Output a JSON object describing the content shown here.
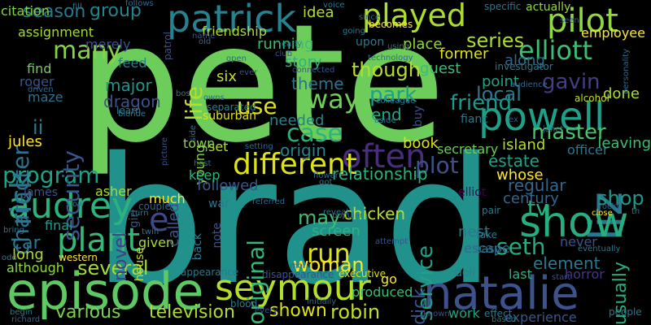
{
  "words": [
    {
      "text": "pete",
      "color": "#6ccd5a"
    },
    {
      "text": "brad",
      "color": "#21918c"
    },
    {
      "text": "episode",
      "color": "#5ec962"
    },
    {
      "text": "natalie",
      "color": "#3b528b"
    },
    {
      "text": "seymour",
      "color": "#b5de2b"
    },
    {
      "text": "patrick",
      "color": "#26828e"
    },
    {
      "text": "played",
      "color": "#addc30"
    },
    {
      "text": "pilot",
      "color": "#90d743"
    },
    {
      "text": "elliott",
      "color": "#3dbc74"
    },
    {
      "text": "powell",
      "color": "#1fa088"
    },
    {
      "text": "liz",
      "color": "#2a788e"
    },
    {
      "text": "show",
      "color": "#26ad81"
    },
    {
      "text": "audrey",
      "color": "#2db27d"
    },
    {
      "text": "plant",
      "color": "#37b878"
    },
    {
      "text": "often",
      "color": "#472d7b"
    },
    {
      "text": "different",
      "color": "#dde318"
    },
    {
      "text": "rick",
      "color": "#2a788e"
    },
    {
      "text": "e",
      "color": "#3e4989"
    },
    {
      "text": "program",
      "color": "#1fa188"
    },
    {
      "text": "character",
      "color": "#2c728e"
    },
    {
      "text": "security",
      "color": "#39568c"
    },
    {
      "text": "season",
      "color": "#2a788e"
    },
    {
      "text": "group",
      "color": "#25848e"
    },
    {
      "text": "series",
      "color": "#addc30"
    },
    {
      "text": "many",
      "color": "#84d44b"
    },
    {
      "text": "gavin",
      "color": "#433e85"
    },
    {
      "text": "master",
      "color": "#4ac16d"
    },
    {
      "text": "friend",
      "color": "#1f9a8a"
    },
    {
      "text": "local",
      "color": "#2a788e"
    },
    {
      "text": "though",
      "color": "#b5de2b"
    },
    {
      "text": "way",
      "color": "#70cf57"
    },
    {
      "text": "park",
      "color": "#1f9e89"
    },
    {
      "text": "case",
      "color": "#2db27d"
    },
    {
      "text": "use",
      "color": "#dde318"
    },
    {
      "text": "plot",
      "color": "#3b528b"
    },
    {
      "text": "seth",
      "color": "#25ab82"
    },
    {
      "text": "run",
      "color": "#dde318"
    },
    {
      "text": "woman",
      "color": "#fde725"
    },
    {
      "text": "several",
      "color": "#a5db36"
    },
    {
      "text": "various",
      "color": "#7ad151"
    },
    {
      "text": "television",
      "color": "#addc30"
    },
    {
      "text": "shown",
      "color": "#dde318"
    },
    {
      "text": "robin",
      "color": "#c2df23"
    },
    {
      "text": "service",
      "color": "#1fa088"
    },
    {
      "text": "dick",
      "color": "#3b528b"
    },
    {
      "text": "may",
      "color": "#3dbc74"
    },
    {
      "text": "original",
      "color": "#35b779"
    },
    {
      "text": "tv",
      "color": "#2ab07f"
    },
    {
      "text": "shop",
      "color": "#1f988b"
    },
    {
      "text": "usually",
      "color": "#26ad81"
    },
    {
      "text": "element",
      "color": "#2a788e"
    },
    {
      "text": "ii",
      "color": "#2a788e"
    },
    {
      "text": "car",
      "color": "#2a788e"
    },
    {
      "text": "novel",
      "color": "#433e85"
    },
    {
      "text": "young",
      "color": "#84d44b"
    },
    {
      "text": "life",
      "color": "#b5de2b"
    },
    {
      "text": "major",
      "color": "#1f968b"
    },
    {
      "text": "dragon",
      "color": "#3b528b"
    },
    {
      "text": "relationship",
      "color": "#2db27d"
    },
    {
      "text": "chicken",
      "color": "#b5de2b"
    },
    {
      "text": "screen",
      "color": "#2db27d"
    },
    {
      "text": "followed",
      "color": "#39568c"
    },
    {
      "text": "origin",
      "color": "#25848e"
    },
    {
      "text": "needed",
      "color": "#26828e"
    },
    {
      "text": "theme",
      "color": "#2c728e"
    },
    {
      "text": "end",
      "color": "#22a884"
    },
    {
      "text": "book",
      "color": "#dde318"
    },
    {
      "text": "secretary",
      "color": "#6ccd5a"
    },
    {
      "text": "island",
      "color": "#b5de2b"
    },
    {
      "text": "estate",
      "color": "#1fa088"
    },
    {
      "text": "whose",
      "color": "#fde725"
    },
    {
      "text": "regular",
      "color": "#31688e"
    },
    {
      "text": "century",
      "color": "#31688e"
    },
    {
      "text": "officer",
      "color": "#2a788e"
    },
    {
      "text": "leaving",
      "color": "#3dbc74"
    },
    {
      "text": "employee",
      "color": "#fde725"
    },
    {
      "text": "point",
      "color": "#20a486"
    },
    {
      "text": "done",
      "color": "#addc30"
    },
    {
      "text": "along",
      "color": "#31688e"
    },
    {
      "text": "former",
      "color": "#dde318"
    },
    {
      "text": "place",
      "color": "#90d743"
    },
    {
      "text": "guest",
      "color": "#3dbc74"
    },
    {
      "text": "story",
      "color": "#2db27d"
    },
    {
      "text": "idea",
      "color": "#b5de2b"
    },
    {
      "text": "running",
      "color": "#3dbc74"
    },
    {
      "text": "friendship",
      "color": "#addc30"
    },
    {
      "text": "assignment",
      "color": "#a5db36"
    },
    {
      "text": "merely",
      "color": "#3b528b"
    },
    {
      "text": "citation",
      "color": "#84d44b"
    },
    {
      "text": "find",
      "color": "#70cf57"
    },
    {
      "text": "roger",
      "color": "#3b528b"
    },
    {
      "text": "maze",
      "color": "#2c728e"
    },
    {
      "text": "jules",
      "color": "#fde725"
    },
    {
      "text": "james",
      "color": "#3b528b"
    },
    {
      "text": "asher",
      "color": "#addc30"
    },
    {
      "text": "long",
      "color": "#addc30"
    },
    {
      "text": "final",
      "color": "#1fa088"
    },
    {
      "text": "although",
      "color": "#90d743"
    },
    {
      "text": "feed",
      "color": "#26828e"
    },
    {
      "text": "six",
      "color": "#c2df23"
    },
    {
      "text": "town",
      "color": "#84d44b"
    },
    {
      "text": "set",
      "color": "#b5de2b"
    },
    {
      "text": "keep",
      "color": "#2db27d"
    },
    {
      "text": "much",
      "color": "#fde725"
    },
    {
      "text": "given",
      "color": "#a5db36"
    },
    {
      "text": "house",
      "color": "#c2df23"
    },
    {
      "text": "back",
      "color": "#2a788e"
    },
    {
      "text": "note",
      "color": "#3b528b"
    },
    {
      "text": "war",
      "color": "#2a788e"
    },
    {
      "text": "nest",
      "color": "#2a788e"
    },
    {
      "text": "never",
      "color": "#3b528b"
    },
    {
      "text": "escape",
      "color": "#31688e"
    },
    {
      "text": "doll",
      "color": "#25848e"
    },
    {
      "text": "last",
      "color": "#2db27d"
    },
    {
      "text": "horror",
      "color": "#453781"
    },
    {
      "text": "go",
      "color": "#fde725"
    },
    {
      "text": "produced",
      "color": "#3dbc74"
    },
    {
      "text": "work",
      "color": "#20a486"
    },
    {
      "text": "experience",
      "color": "#39568c"
    },
    {
      "text": "called",
      "color": "#3b528b"
    },
    {
      "text": "girl",
      "color": "#3b528b"
    },
    {
      "text": "upon",
      "color": "#2a788e"
    },
    {
      "text": "technology",
      "color": "#31688e"
    },
    {
      "text": "investigator",
      "color": "#2a788e"
    },
    {
      "text": "audience",
      "color": "#31688e"
    },
    {
      "text": "colleague",
      "color": "#2a788e"
    },
    {
      "text": "alcohol",
      "color": "#c2df23"
    },
    {
      "text": "personality",
      "color": "#31688e"
    },
    {
      "text": "elliot",
      "color": "#440154"
    },
    {
      "text": "fianc",
      "color": "#2a788e"
    },
    {
      "text": "buy",
      "color": "#3b528b"
    },
    {
      "text": "connected",
      "color": "#3b528b"
    },
    {
      "text": "suburban",
      "color": "#dde318"
    },
    {
      "text": "separated",
      "color": "#26828e"
    },
    {
      "text": "learn",
      "color": "#2a788e"
    },
    {
      "text": "patrol",
      "color": "#3b528b"
    },
    {
      "text": "becomes",
      "color": "#fde725"
    },
    {
      "text": "going",
      "color": "#2a788e"
    },
    {
      "text": "actually",
      "color": "#90d743"
    },
    {
      "text": "specific",
      "color": "#2a788e"
    },
    {
      "text": "appearance",
      "color": "#2a788e"
    },
    {
      "text": "disappearance",
      "color": "#3b528b"
    },
    {
      "text": "executive",
      "color": "#dde318"
    },
    {
      "text": "moral",
      "color": "#31688e"
    },
    {
      "text": "western",
      "color": "#fde725"
    },
    {
      "text": "popular",
      "color": "#2a788e"
    },
    {
      "text": "couple",
      "color": "#31688e"
    },
    {
      "text": "turn",
      "color": "#26828e"
    },
    {
      "text": "blood",
      "color": "#2a788e"
    },
    {
      "text": "initially",
      "color": "#31688e"
    },
    {
      "text": "known",
      "color": "#3b528b"
    },
    {
      "text": "effect",
      "color": "#2a788e"
    },
    {
      "text": "based",
      "color": "#2a788e"
    },
    {
      "text": "people",
      "color": "#2a788e"
    },
    {
      "text": "start",
      "color": "#3b528b"
    },
    {
      "text": "easy",
      "color": "#2a788e"
    },
    {
      "text": "take",
      "color": "#2a788e"
    },
    {
      "text": "pair",
      "color": "#2a788e"
    },
    {
      "text": "rocky",
      "color": "#31688e"
    },
    {
      "text": "close",
      "color": "#fde725"
    },
    {
      "text": "eventually",
      "color": "#2a788e"
    },
    {
      "text": "reveal",
      "color": "#2a788e"
    },
    {
      "text": "referred",
      "color": "#31688e"
    },
    {
      "text": "attempt",
      "color": "#3b528b"
    },
    {
      "text": "flower",
      "color": "#31688e"
    },
    {
      "text": "got",
      "color": "#2a788e"
    },
    {
      "text": "aside",
      "color": "#2a788e"
    },
    {
      "text": "slow",
      "color": "#2a788e"
    },
    {
      "text": "bring",
      "color": "#2a788e"
    },
    {
      "text": "twin",
      "color": "#2a788e"
    },
    {
      "text": "host",
      "color": "#31688e"
    },
    {
      "text": "picture",
      "color": "#3b528b"
    },
    {
      "text": "setting",
      "color": "#31688e"
    },
    {
      "text": "side",
      "color": "#2a788e"
    },
    {
      "text": "owns",
      "color": "#31688e"
    },
    {
      "text": "blonde",
      "color": "#2a788e"
    },
    {
      "text": "driven",
      "color": "#31688e"
    },
    {
      "text": "bos",
      "color": "#2a788e"
    },
    {
      "text": "open",
      "color": "#31688e"
    },
    {
      "text": "ever",
      "color": "#3b528b"
    },
    {
      "text": "early",
      "color": "#2a788e"
    },
    {
      "text": "club",
      "color": "#3b528b"
    },
    {
      "text": "using",
      "color": "#2a788e"
    },
    {
      "text": "since",
      "color": "#31688e"
    },
    {
      "text": "voice",
      "color": "#2a788e"
    },
    {
      "text": "name",
      "color": "#3b528b"
    },
    {
      "text": "old",
      "color": "#31688e"
    },
    {
      "text": "fill",
      "color": "#2a788e"
    },
    {
      "text": "follows",
      "color": "#31688e"
    },
    {
      "text": "seen",
      "color": "#3b528b"
    },
    {
      "text": "janet",
      "color": "#2a788e"
    },
    {
      "text": "every",
      "color": "#3b528b"
    },
    {
      "text": "begin",
      "color": "#2a788e"
    },
    {
      "text": "richard",
      "color": "#31688e"
    },
    {
      "text": "odd",
      "color": "#2a788e"
    },
    {
      "text": "ex",
      "color": "#3b528b"
    },
    {
      "text": "th",
      "color": "#2a788e"
    }
  ]
}
